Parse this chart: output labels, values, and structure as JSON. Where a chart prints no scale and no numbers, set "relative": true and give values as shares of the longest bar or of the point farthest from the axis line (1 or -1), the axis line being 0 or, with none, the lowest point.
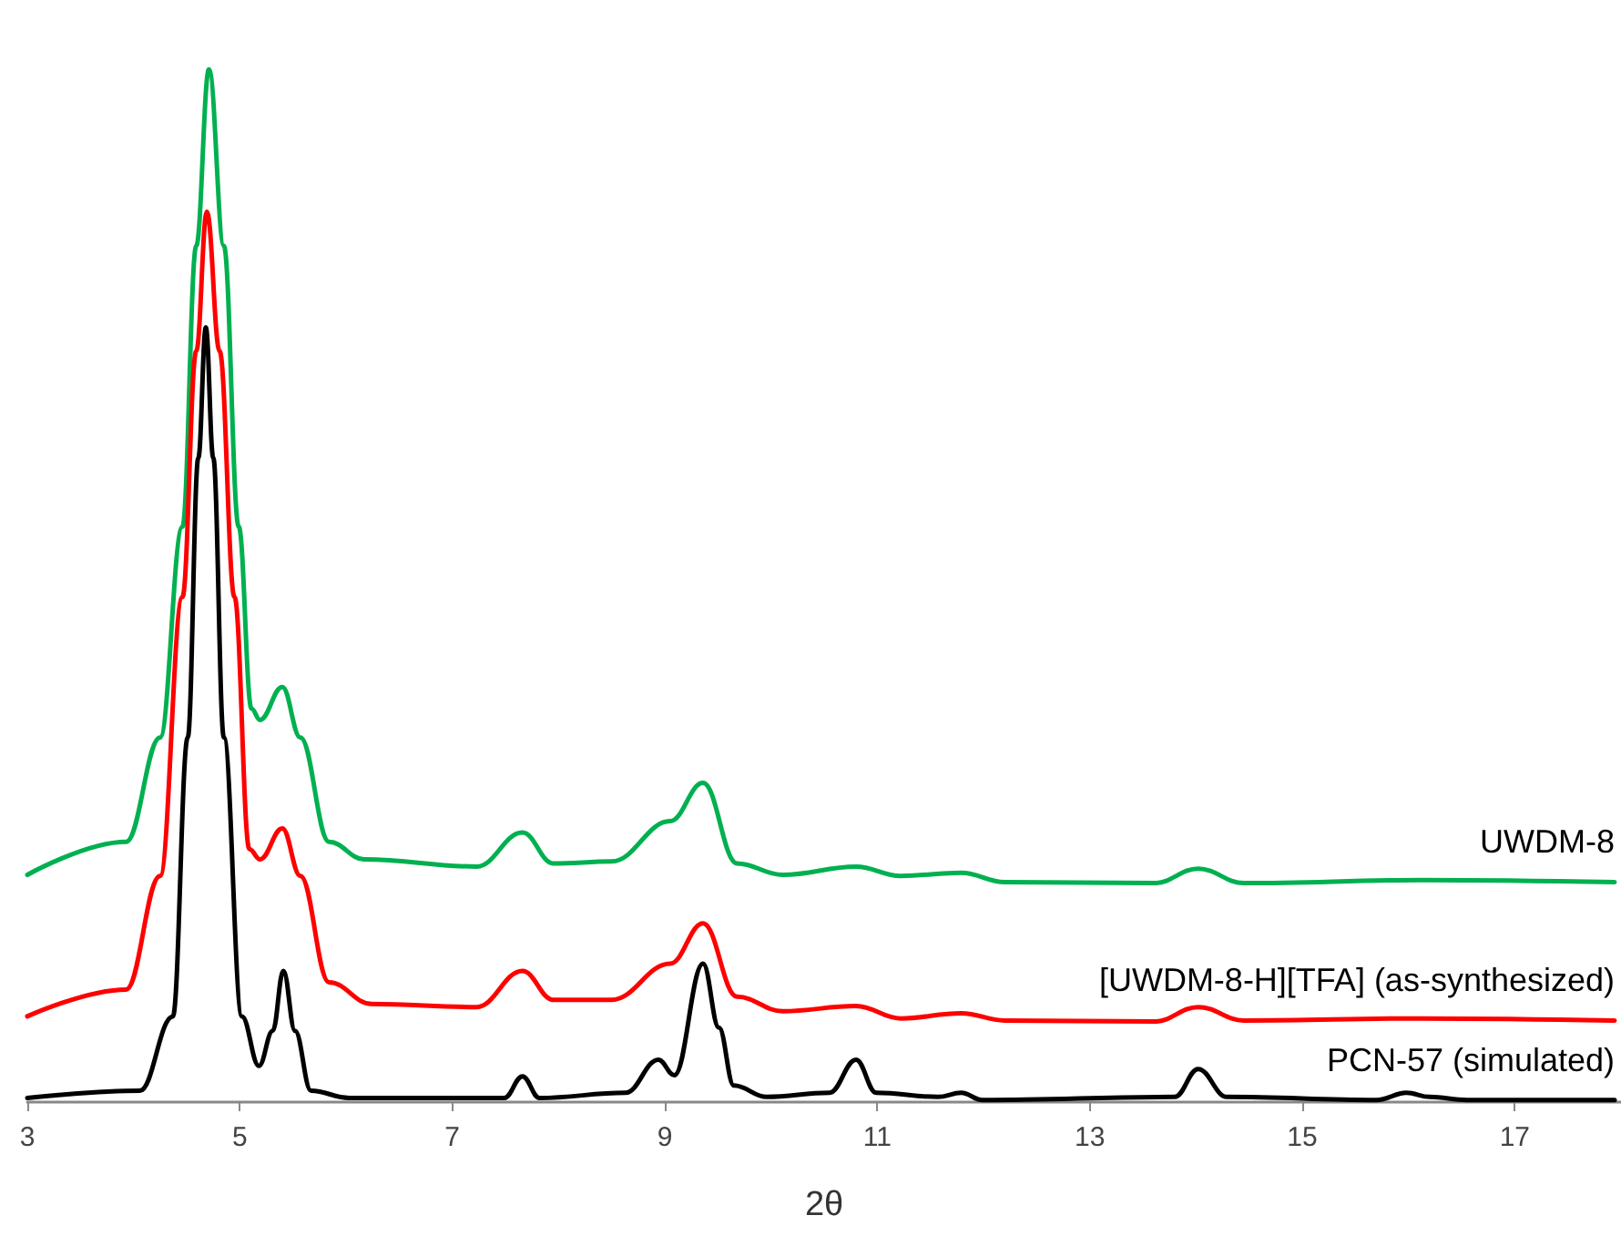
{
  "chart_data": {
    "type": "line",
    "relative": true,
    "xlabel": "2θ",
    "xlim": [
      3,
      18
    ],
    "xticks": [
      3,
      5,
      7,
      9,
      11,
      13,
      15,
      17
    ],
    "grid": false,
    "legend": false,
    "marker": "none",
    "line_style": "solid",
    "series": [
      {
        "name": "UWDM-8",
        "color": "#00b050",
        "x": [
          3.0,
          3.93,
          4.25,
          4.46,
          4.59,
          4.71,
          4.85,
          4.99,
          5.11,
          5.19,
          5.4,
          5.57,
          5.84,
          6.17,
          7.23,
          7.66,
          7.95,
          8.5,
          9.05,
          9.36,
          9.68,
          10.11,
          10.8,
          11.22,
          11.79,
          12.2,
          13.61,
          14.02,
          14.45,
          16.13,
          17.94
        ],
        "values": [
          0.22,
          0.252,
          0.353,
          0.557,
          0.829,
          1.0,
          0.829,
          0.557,
          0.381,
          0.37,
          0.402,
          0.353,
          0.252,
          0.235,
          0.228,
          0.261,
          0.231,
          0.233,
          0.272,
          0.309,
          0.231,
          0.22,
          0.228,
          0.219,
          0.222,
          0.213,
          0.212,
          0.226,
          0.212,
          0.215,
          0.213
        ]
      },
      {
        "name": "[UWDM-8-H][TFA] (as-synthesized)",
        "color": "#ff0000",
        "x": [
          3.0,
          3.93,
          4.25,
          4.46,
          4.59,
          4.69,
          4.81,
          4.95,
          5.09,
          5.19,
          5.4,
          5.57,
          5.84,
          6.24,
          7.23,
          7.66,
          7.95,
          8.5,
          9.05,
          9.36,
          9.68,
          10.11,
          10.8,
          11.22,
          11.79,
          12.2,
          13.61,
          14.02,
          14.45,
          16.13,
          17.94
        ],
        "values": [
          0.083,
          0.109,
          0.219,
          0.489,
          0.727,
          0.862,
          0.727,
          0.489,
          0.245,
          0.235,
          0.265,
          0.219,
          0.116,
          0.095,
          0.092,
          0.127,
          0.099,
          0.099,
          0.134,
          0.173,
          0.102,
          0.088,
          0.093,
          0.081,
          0.086,
          0.079,
          0.078,
          0.092,
          0.079,
          0.081,
          0.079
        ]
      },
      {
        "name": "PCN-57 (simulated)",
        "color": "#000000",
        "x": [
          3.0,
          4.06,
          4.37,
          4.51,
          4.61,
          4.68,
          4.75,
          4.85,
          5.02,
          5.18,
          5.31,
          5.41,
          5.52,
          5.67,
          6.03,
          7.49,
          7.66,
          7.82,
          8.63,
          8.94,
          9.09,
          9.36,
          9.51,
          9.65,
          9.96,
          10.55,
          10.8,
          10.99,
          11.57,
          11.79,
          11.99,
          13.8,
          14.02,
          14.29,
          15.7,
          15.98,
          16.2,
          16.55,
          17.94
        ],
        "values": [
          0.004,
          0.011,
          0.083,
          0.353,
          0.624,
          0.75,
          0.624,
          0.353,
          0.083,
          0.035,
          0.069,
          0.127,
          0.069,
          0.011,
          0.004,
          0.004,
          0.025,
          0.004,
          0.009,
          0.041,
          0.026,
          0.134,
          0.072,
          0.016,
          0.005,
          0.009,
          0.041,
          0.009,
          0.005,
          0.009,
          0.002,
          0.005,
          0.032,
          0.005,
          0.002,
          0.009,
          0.005,
          0.002,
          0.002
        ]
      }
    ]
  }
}
